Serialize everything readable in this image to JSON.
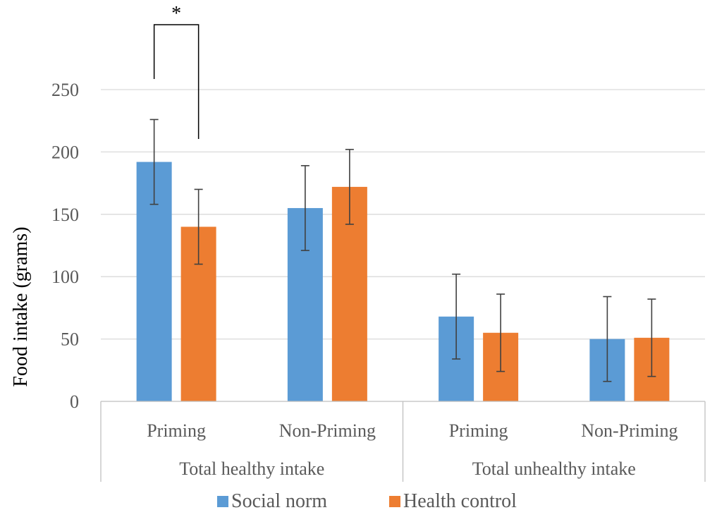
{
  "chart_data": {
    "type": "bar",
    "ylabel": "Food intake (grams)",
    "xlabel": "",
    "title": "",
    "ylim": [
      0,
      250
    ],
    "yticks": [
      0,
      50,
      100,
      150,
      200,
      250
    ],
    "grid": true,
    "legend_position": "bottom",
    "groups": [
      {
        "label": "Total healthy intake",
        "categories": [
          "Priming",
          "Non-Priming"
        ]
      },
      {
        "label": "Total unhealthy intake",
        "categories": [
          "Priming",
          "Non-Priming"
        ]
      }
    ],
    "categories": [
      "Total healthy intake - Priming",
      "Total healthy intake - Non-Priming",
      "Total unhealthy intake - Priming",
      "Total unhealthy intake - Non-Priming"
    ],
    "series": [
      {
        "name": "Social norm",
        "color": "#5b9bd5",
        "values": [
          192,
          155,
          68,
          50
        ],
        "error": [
          34,
          34,
          34,
          34
        ]
      },
      {
        "name": "Health control",
        "color": "#ed7d31",
        "values": [
          140,
          172,
          55,
          51
        ],
        "error": [
          30,
          30,
          31,
          31
        ]
      }
    ],
    "annotations": [
      {
        "text": "*",
        "between": "Total healthy intake - Priming: Social norm vs Health control"
      }
    ]
  }
}
